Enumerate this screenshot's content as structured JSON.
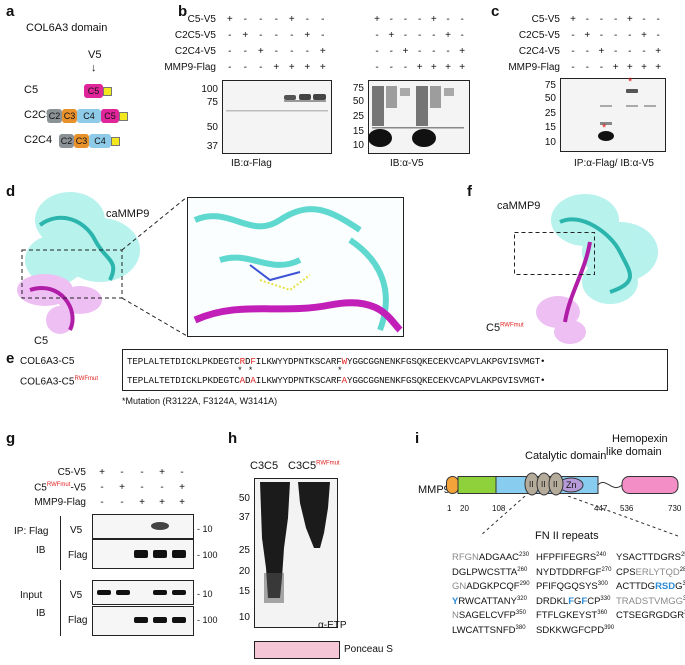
{
  "panels": {
    "a": {
      "letter": "a",
      "title": "COL6A3 domain",
      "v5": "V5",
      "arrow": "↓",
      "constructs": [
        {
          "name": "C5",
          "domains": [
            "C5"
          ]
        },
        {
          "name": "C2C5",
          "domains": [
            "C2",
            "C3",
            "C4",
            "C5"
          ]
        },
        {
          "name": "C2C4",
          "domains": [
            "C2",
            "C3",
            "C4"
          ]
        }
      ],
      "colors": {
        "C2": "#8a9296",
        "C3": "#e8912b",
        "C4": "#8ecbe8",
        "C5": "#e0259a",
        "tag": "#f3e81d"
      }
    },
    "b": {
      "letter": "b",
      "rows": [
        "C5-V5",
        "C2C5-V5",
        "C2C4-V5",
        "MMP9-Flag"
      ],
      "signs_left": [
        [
          "+",
          "-",
          "-",
          "-",
          "+",
          "-",
          "-"
        ],
        [
          "-",
          "+",
          "-",
          "-",
          "-",
          "+",
          "-"
        ],
        [
          "-",
          "-",
          "+",
          "-",
          "-",
          "-",
          "+"
        ],
        [
          "-",
          "-",
          "-",
          "+",
          "+",
          "+",
          "+"
        ]
      ],
      "signs_right": [
        [
          "+",
          "-",
          "-",
          "-",
          "+",
          "-",
          "-"
        ],
        [
          "-",
          "+",
          "-",
          "-",
          "-",
          "+",
          "-"
        ],
        [
          "-",
          "-",
          "+",
          "-",
          "-",
          "-",
          "+"
        ],
        [
          "-",
          "-",
          "-",
          "+",
          "+",
          "+",
          "+"
        ]
      ],
      "markers_left": [
        "100",
        "75",
        "50",
        "37"
      ],
      "markers_right": [
        "75",
        "50",
        "25",
        "15",
        "10"
      ],
      "caption_left": "IB:α-Flag",
      "caption_right": "IB:α-V5"
    },
    "c": {
      "letter": "c",
      "rows": [
        "C5-V5",
        "C2C5-V5",
        "C2C4-V5",
        "MMP9-Flag"
      ],
      "signs": [
        [
          "+",
          "-",
          "-",
          "-",
          "+",
          "-",
          "-"
        ],
        [
          "-",
          "+",
          "-",
          "-",
          "-",
          "+",
          "-"
        ],
        [
          "-",
          "-",
          "+",
          "-",
          "-",
          "-",
          "+"
        ],
        [
          "-",
          "-",
          "-",
          "+",
          "+",
          "+",
          "+"
        ]
      ],
      "markers": [
        "75",
        "50",
        "25",
        "15",
        "10"
      ],
      "star": "*",
      "caption": "IP:α-Flag/ IB:α-V5"
    },
    "d": {
      "letter": "d",
      "label_top": "caMMP9",
      "label_bottom": "C5"
    },
    "f": {
      "letter": "f",
      "label_top": "caMMP9",
      "label_bottom": "C5",
      "label_sup": "RWFmut"
    },
    "e": {
      "letter": "e",
      "row1_label": "COL6A3-C5",
      "row2_label": "COL6A3-C5",
      "row2_sup": "RWFmut",
      "seq1": [
        "TEPLALTETDICKLPKDEGTC",
        "R",
        "D",
        "F",
        "ILKWYYDPNTKSCARF",
        "W",
        "YGGCGGNENKFGSQKECEKVCAPVLAKPGVISVMGT•"
      ],
      "seq2": [
        "TEPLALTETDICKLPKDEGTC",
        "A",
        "D",
        "A",
        "ILKWYYDPNTKSCARF",
        "A",
        "YGGCGGNENKFGSQKECEKVCAPVLAKPGVISVMGT•"
      ],
      "stars": [
        "*",
        "*",
        "*"
      ],
      "note": "*Mutation (R3122A, F3124A, W3141A)"
    },
    "g": {
      "letter": "g",
      "rows": [
        "C5-V5",
        "C5",
        "MMP9-Flag"
      ],
      "row2_sup": "RWFmut",
      "row2_suffix": "-V5",
      "signs": [
        [
          "+",
          "-",
          "-",
          "+",
          "-"
        ],
        [
          "-",
          "+",
          "-",
          "-",
          "+"
        ],
        [
          "-",
          "-",
          "+",
          "+",
          "+"
        ]
      ],
      "section1": "IP: Flag IB",
      "section1_a": "IP: Flag",
      "section1_b": "IB",
      "section2_a": "Input",
      "section2_b": "IB",
      "blot_labels": [
        "V5",
        "Flag",
        "V5",
        "Flag"
      ],
      "sizes": [
        "- 10",
        "- 100",
        "- 10",
        "- 100"
      ]
    },
    "h": {
      "letter": "h",
      "lane1": "C3C5",
      "lane2": "C3C5",
      "lane2_sup": "RWFmut",
      "markers": [
        "50",
        "37",
        "25",
        "20",
        "15",
        "10"
      ],
      "antibody": "α-ETP",
      "stain": "Ponceau S"
    },
    "i": {
      "letter": "i",
      "protein": "MMP9",
      "catalytic": "Catalytic domain",
      "hemopexin1": "Hemopexin",
      "hemopexin2": "like domain",
      "zn": "Zn",
      "fn_marks": [
        "II",
        "II",
        "II"
      ],
      "positions": [
        "1",
        "20",
        "108",
        "447",
        "536",
        "730"
      ],
      "fn_title": "FN II repeats",
      "sequences": [
        [
          {
            "parts": [
              [
                "gr",
                "RFGN"
              ],
              [
                "n",
                "ADGAAC"
              ]
            ],
            "num": "230"
          },
          {
            "parts": [
              [
                "n",
                "DGLPWCSTTA"
              ]
            ],
            "num": "260"
          },
          {
            "parts": [
              [
                "gr",
                "GN"
              ],
              [
                "n",
                "ADGKPCQF"
              ]
            ],
            "num": "290"
          },
          {
            "parts": [
              [
                "bl",
                "Y"
              ],
              [
                "n",
                "RWCATTANY"
              ]
            ],
            "num": "320"
          },
          {
            "parts": [
              [
                "gr",
                "N"
              ],
              [
                "n",
                "SAGELCVFP"
              ]
            ],
            "num": "350"
          },
          {
            "parts": [
              [
                "n",
                "LWCATTSNFD"
              ]
            ],
            "num": "380"
          }
        ],
        [
          {
            "parts": [
              [
                "n",
                "HFPFIFEGRS"
              ]
            ],
            "num": "240"
          },
          {
            "parts": [
              [
                "n",
                "NYDTDDRFGF"
              ]
            ],
            "num": "270"
          },
          {
            "parts": [
              [
                "n",
                "PFIFQGQSYS"
              ]
            ],
            "num": "300"
          },
          {
            "parts": [
              [
                "n",
                "DRDKL"
              ],
              [
                "bl",
                "F"
              ],
              [
                "n",
                "G"
              ],
              [
                "bl",
                "F"
              ],
              [
                "n",
                "CP"
              ]
            ],
            "num": "330"
          },
          {
            "parts": [
              [
                "n",
                "FTFLGKEYST"
              ]
            ],
            "num": "360"
          },
          {
            "parts": [
              [
                "n",
                "SDKKWGFCPD"
              ]
            ],
            "num": "390"
          }
        ],
        [
          {
            "parts": [
              [
                "n",
                "YSACTTDGRS"
              ]
            ],
            "num": "250"
          },
          {
            "parts": [
              [
                "n",
                "CPS"
              ],
              [
                "gr",
                "ERLYTQD"
              ]
            ],
            "num": "280"
          },
          {
            "parts": [
              [
                "n",
                "ACTTDG"
              ],
              [
                "bl",
                "RSD"
              ],
              [
                "n",
                "G"
              ]
            ],
            "num": "310"
          },
          {
            "parts": [
              [
                "gr",
                "TRADSTVMGG"
              ]
            ],
            "num": "340"
          },
          {
            "parts": [
              [
                "n",
                "CTSEGRGDGR"
              ]
            ],
            "num": "370"
          }
        ]
      ]
    }
  }
}
